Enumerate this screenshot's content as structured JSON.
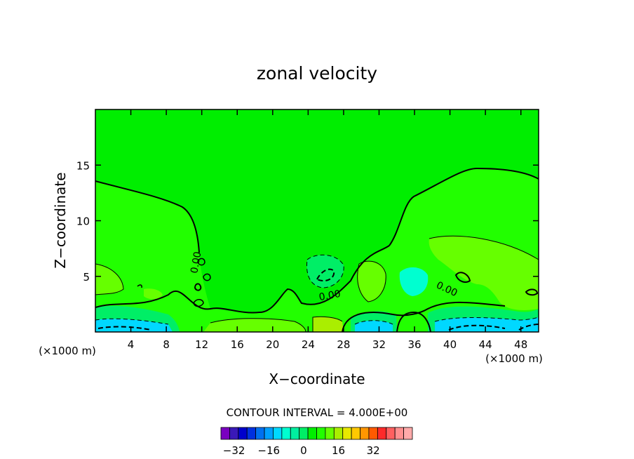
{
  "chart_data": {
    "type": "contour",
    "title": "zonal velocity",
    "xlabel": "X−coordinate",
    "ylabel": "Z−coordinate",
    "x_units": "(×1000 m)",
    "z_units": "(×1000 m)",
    "xlim": [
      0,
      50
    ],
    "ylim": [
      0,
      20
    ],
    "x_ticks": [
      4,
      8,
      12,
      16,
      20,
      24,
      28,
      32,
      36,
      40,
      44,
      48
    ],
    "y_ticks": [
      5,
      10,
      15
    ],
    "x_tick_labels": [
      "4",
      "8",
      "12",
      "16",
      "20",
      "24",
      "28",
      "32",
      "36",
      "40",
      "44",
      "48"
    ],
    "y_tick_labels": [
      "5",
      "10",
      "15"
    ],
    "contour_interval_text": "CONTOUR INTERVAL = 4.000E+00",
    "contour_interval": 4.0,
    "contour_labels": [
      {
        "text": "0.00",
        "x": 11.7,
        "z": 6.2
      },
      {
        "text": "0.00",
        "x": 26.5,
        "z": 3.0
      },
      {
        "text": "0.00",
        "x": 39.5,
        "z": 3.6
      }
    ],
    "colorbar": {
      "levels": [
        -36,
        -32,
        -28,
        -24,
        -20,
        -16,
        -12,
        -8,
        -4,
        0,
        4,
        8,
        12,
        16,
        20,
        24,
        28,
        32,
        36
      ],
      "colors": [
        "#7a00c0",
        "#3a18b8",
        "#0000cc",
        "#0030e0",
        "#0070f0",
        "#00a0ff",
        "#00d8ff",
        "#00ffd0",
        "#00f0a0",
        "#00ee66",
        "#00ee00",
        "#22ff00",
        "#66ff00",
        "#aaee00",
        "#e8e800",
        "#ffc800",
        "#ff9600",
        "#ff5a00",
        "#ff2a2a",
        "#ff6060",
        "#ff9090",
        "#ffaaaa"
      ],
      "tick_labels": [
        "−32",
        "−16",
        "0",
        "16",
        "32"
      ],
      "tick_values": [
        -32,
        -16,
        0,
        16,
        32
      ]
    },
    "regions": {
      "background_color": "#00ee00",
      "positive_color": "#22ff00",
      "positive2_color": "#66ff00",
      "positive3_color": "#aaee00",
      "negative_color": "#00ee66",
      "negative2_color": "#00ffd0",
      "negative3_color": "#00d8ff"
    }
  }
}
